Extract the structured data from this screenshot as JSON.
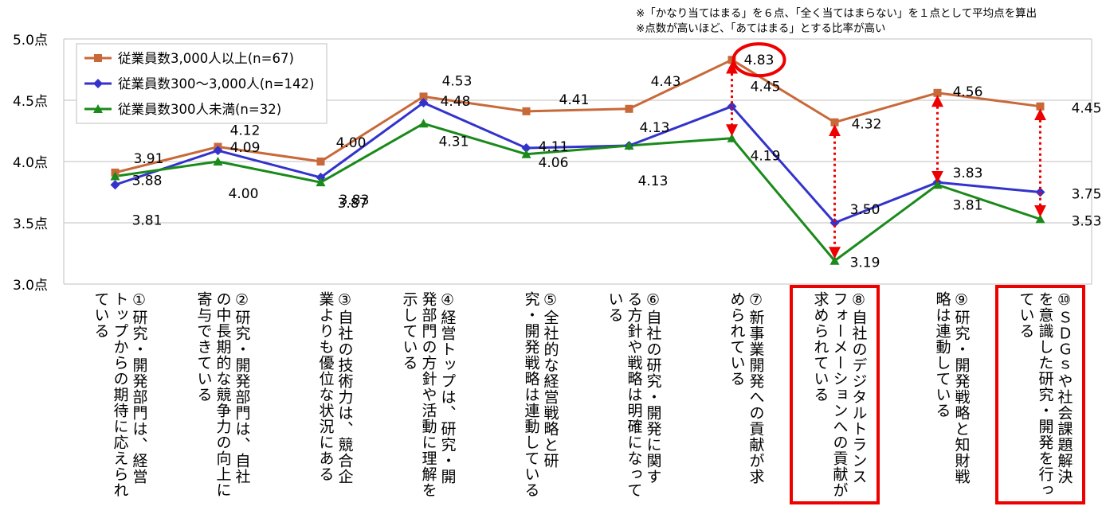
{
  "notes": [
    "※「かなり当てはまる」を６点、「全く当てはまらない」を１点として平均点を算出",
    "※点数が高いほど、「あてはまる」とする比率が高い"
  ],
  "colors": {
    "large": "#c8693a",
    "mid": "#3333cc",
    "small": "#1a8a1a",
    "highlight": "#ee0000",
    "grid": "#bfbfbf"
  },
  "chart_data": {
    "type": "line",
    "ylim": [
      3.0,
      5.0
    ],
    "yticks": [
      "3.0点",
      "3.5点",
      "4.0点",
      "4.5点",
      "5.0点"
    ],
    "ytick_values": [
      3.0,
      3.5,
      4.0,
      4.5,
      5.0
    ],
    "categories": [
      "①研究・開発部門は、経営トップからの期待に応えられている",
      "②研究・開発部門は、自社の中長期的な競争力の向上に寄与できている",
      "③自社の技術力は、競合企業よりも優位な状況にある",
      "④経営トップは、研究・開発部門の方針や活動に理解を示している",
      "⑤全社的な経営戦略と研究・開発戦略は連動している",
      "⑥自社の研究・開発に関する方針や戦略は明確になっている",
      "⑦新事業開発への貢献が求められている",
      "⑧自社のデジタルトランスフォーメーションへの貢献が求められている",
      "⑨研究・開発戦略と知財戦略は連動している",
      "⑩ＳＤＧｓや社会課題解決を意識した研究・開発を行っている"
    ],
    "series": [
      {
        "name": "従業員数3,000人以上(n=67)",
        "color": "#c8693a",
        "marker": "square",
        "values": [
          3.91,
          4.12,
          4.0,
          4.53,
          4.41,
          4.43,
          4.83,
          4.32,
          4.56,
          4.45
        ],
        "labels": [
          "3.91",
          "4.12",
          "4.00",
          "4.53",
          "4.41",
          "4.43",
          "4.83",
          "4.32",
          "4.56",
          "4.45"
        ]
      },
      {
        "name": "従業員数300～3,000人(n=142)",
        "color": "#3333cc",
        "marker": "diamond",
        "values": [
          3.81,
          4.09,
          3.87,
          4.48,
          4.11,
          4.13,
          4.45,
          3.5,
          3.83,
          3.75
        ],
        "labels": [
          "3.81",
          "4.09",
          "3.87",
          "4.48",
          "4.11",
          "4.13",
          "4.45",
          "3.50",
          "3.83",
          "3.75"
        ]
      },
      {
        "name": "従業員数300人未満(n=32)",
        "color": "#1a8a1a",
        "marker": "triangle",
        "values": [
          3.88,
          4.0,
          3.83,
          4.31,
          4.06,
          4.13,
          4.19,
          3.19,
          3.81,
          3.53
        ],
        "labels": [
          "3.88",
          "4.00",
          "3.83",
          "4.31",
          "4.06",
          "4.13",
          "4.19",
          "3.19",
          "3.81",
          "3.53"
        ]
      }
    ],
    "highlights": {
      "circled_label": {
        "series": 0,
        "index": 6
      },
      "arrows": [
        6,
        7,
        8,
        9
      ],
      "boxed_categories": [
        7,
        9
      ]
    },
    "legend": "top-left",
    "grid": true
  }
}
